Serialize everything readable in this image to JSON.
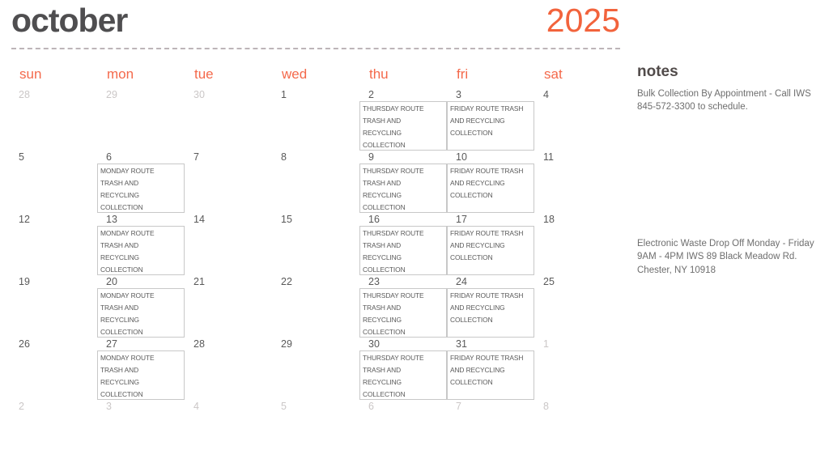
{
  "header": {
    "month": "october",
    "year": "2025"
  },
  "weekdays": [
    "sun",
    "mon",
    "tue",
    "wed",
    "thu",
    "fri",
    "sat"
  ],
  "days": [
    "28",
    "29",
    "30",
    "1",
    "2",
    "3",
    "4",
    "5",
    "6",
    "7",
    "8",
    "9",
    "10",
    "11",
    "12",
    "13",
    "14",
    "15",
    "16",
    "17",
    "18",
    "19",
    "20",
    "21",
    "22",
    "23",
    "24",
    "25",
    "26",
    "27",
    "28",
    "29",
    "30",
    "31",
    "1",
    "2",
    "3",
    "4",
    "5",
    "6",
    "7",
    "8"
  ],
  "events": {
    "monday": "MONDAY ROUTE\nTRASH AND\nRECYCLING\nCOLLECTION",
    "thursday": "THURSDAY ROUTE\nTRASH AND\nRECYCLING\nCOLLECTION",
    "friday": "FRIDAY ROUTE TRASH\nAND RECYCLING\nCOLLECTION"
  },
  "notes": {
    "title": "notes",
    "items": [
      "Bulk Collection By Appointment - Call IWS 845-572-3300 to schedule.",
      "Electronic Waste Drop Off Monday - Friday 9AM - 4PM  IWS 89 Black Meadow Rd. Chester, NY 10918"
    ]
  },
  "colors": {
    "accent_orange": "#F2633C",
    "weekday_orange": "#F4694B",
    "title_gray": "#4F4E50",
    "day_number": "#595959",
    "muted_day_number": "#CBC7C7",
    "event_text": "#5A5A5A",
    "event_border": "#C8C8C8",
    "note_text": "#6E6E6E",
    "divider": "#BDB5B8"
  }
}
